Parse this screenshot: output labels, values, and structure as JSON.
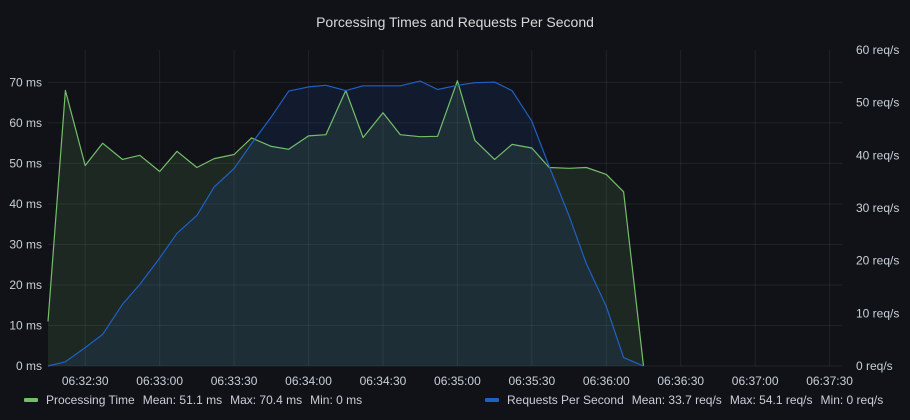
{
  "panel": {
    "title": "Porcessing Times and Requests Per Second"
  },
  "legend": {
    "left": {
      "name": "Processing Time",
      "color": "#73bf69",
      "mean": "Mean: 51.1 ms",
      "max": "Max: 70.4 ms",
      "min": "Min: 0 ms"
    },
    "right": {
      "name": "Requests Per Second",
      "color": "#1f60c4",
      "mean": "Mean: 33.7 req/s",
      "max": "Max: 54.1 req/s",
      "min": "Min: 0 req/s"
    }
  },
  "chart_data": {
    "type": "area",
    "title": "Porcessing Times and Requests Per Second",
    "grid": true,
    "legend_position": "bottom",
    "x_ticks": [
      "06:32:30",
      "06:33:00",
      "06:33:30",
      "06:34:00",
      "06:34:30",
      "06:35:00",
      "06:35:30",
      "06:36:00",
      "06:36:30",
      "06:37:00",
      "06:37:30"
    ],
    "x_range": [
      "06:32:15",
      "06:37:35"
    ],
    "y_left": {
      "unit": "ms",
      "ticks": [
        "0 ms",
        "10 ms",
        "20 ms",
        "30 ms",
        "40 ms",
        "50 ms",
        "60 ms",
        "70 ms"
      ],
      "range": [
        0,
        78
      ]
    },
    "y_right": {
      "unit": "req/s",
      "ticks": [
        "0 req/s",
        "10 req/s",
        "20 req/s",
        "30 req/s",
        "40 req/s",
        "50 req/s",
        "60 req/s"
      ],
      "range": [
        0,
        60
      ]
    },
    "series": [
      {
        "name": "Processing Time",
        "axis": "left",
        "color": "#73bf69",
        "points": [
          [
            "06:32:15",
            11
          ],
          [
            "06:32:22",
            68
          ],
          [
            "06:32:30",
            49.5
          ],
          [
            "06:32:37",
            55
          ],
          [
            "06:32:45",
            51
          ],
          [
            "06:32:52",
            52
          ],
          [
            "06:33:00",
            48
          ],
          [
            "06:33:07",
            53
          ],
          [
            "06:33:15",
            49
          ],
          [
            "06:33:22",
            51.2
          ],
          [
            "06:33:30",
            52.2
          ],
          [
            "06:33:37",
            56.3
          ],
          [
            "06:33:45",
            54.2
          ],
          [
            "06:33:52",
            53.5
          ],
          [
            "06:34:00",
            56.8
          ],
          [
            "06:34:07",
            57.1
          ],
          [
            "06:34:15",
            68
          ],
          [
            "06:34:22",
            56.4
          ],
          [
            "06:34:30",
            62.5
          ],
          [
            "06:34:37",
            57.1
          ],
          [
            "06:34:45",
            56.6
          ],
          [
            "06:34:52",
            56.7
          ],
          [
            "06:35:00",
            70.4
          ],
          [
            "06:35:07",
            55.7
          ],
          [
            "06:35:15",
            51
          ],
          [
            "06:35:22",
            54.7
          ],
          [
            "06:35:30",
            53.8
          ],
          [
            "06:35:37",
            49
          ],
          [
            "06:35:45",
            48.8
          ],
          [
            "06:35:52",
            49
          ],
          [
            "06:36:00",
            47.3
          ],
          [
            "06:36:07",
            43
          ],
          [
            "06:36:15",
            0
          ]
        ]
      },
      {
        "name": "Requests Per Second",
        "axis": "right",
        "color": "#1f60c4",
        "points": [
          [
            "06:32:15",
            0
          ],
          [
            "06:32:22",
            0.8
          ],
          [
            "06:32:30",
            3.5
          ],
          [
            "06:32:37",
            6
          ],
          [
            "06:32:45",
            11.7
          ],
          [
            "06:32:52",
            15.5
          ],
          [
            "06:33:00",
            20.5
          ],
          [
            "06:33:07",
            25.2
          ],
          [
            "06:33:15",
            28.6
          ],
          [
            "06:33:22",
            34
          ],
          [
            "06:33:30",
            37.5
          ],
          [
            "06:33:37",
            42.2
          ],
          [
            "06:33:45",
            47.3
          ],
          [
            "06:33:52",
            52.2
          ],
          [
            "06:34:00",
            53
          ],
          [
            "06:34:07",
            53.3
          ],
          [
            "06:34:15",
            52.3
          ],
          [
            "06:34:22",
            53.2
          ],
          [
            "06:34:30",
            53.2
          ],
          [
            "06:34:37",
            53.2
          ],
          [
            "06:34:45",
            54.1
          ],
          [
            "06:34:52",
            52.5
          ],
          [
            "06:35:00",
            53.3
          ],
          [
            "06:35:07",
            53.8
          ],
          [
            "06:35:15",
            53.9
          ],
          [
            "06:35:22",
            52.3
          ],
          [
            "06:35:30",
            46.5
          ],
          [
            "06:35:37",
            37.9
          ],
          [
            "06:35:45",
            28.5
          ],
          [
            "06:35:52",
            19.4
          ],
          [
            "06:36:00",
            11.3
          ],
          [
            "06:36:07",
            1.6
          ],
          [
            "06:36:15",
            0
          ]
        ]
      }
    ]
  }
}
